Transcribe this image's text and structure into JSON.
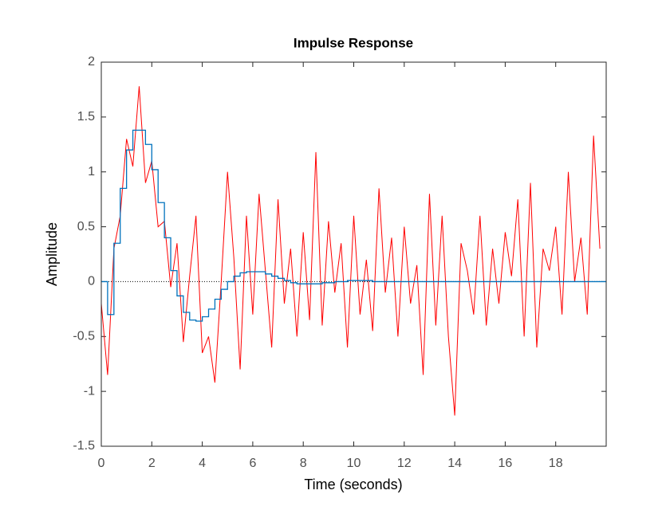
{
  "chart_data": {
    "type": "line",
    "title": "Impulse Response",
    "x_label": "Time (seconds)",
    "y_label": "Amplitude",
    "x": [
      0,
      0.25,
      0.5,
      0.75,
      1,
      1.25,
      1.5,
      1.75,
      2,
      2.25,
      2.5,
      2.75,
      3,
      3.25,
      3.5,
      3.75,
      4,
      4.25,
      4.5,
      4.75,
      5,
      5.25,
      5.5,
      5.75,
      6,
      6.25,
      6.5,
      6.75,
      7,
      7.25,
      7.5,
      7.75,
      8,
      8.25,
      8.5,
      8.75,
      9,
      9.25,
      9.5,
      9.75,
      10,
      10.25,
      10.5,
      10.75,
      11,
      11.25,
      11.5,
      11.75,
      12,
      12.25,
      12.5,
      12.75,
      13,
      13.25,
      13.5,
      13.75,
      14,
      14.25,
      14.5,
      14.75,
      15,
      15.25,
      15.5,
      15.75,
      16,
      16.25,
      16.5,
      16.75,
      17,
      17.25,
      17.5,
      17.75,
      18,
      18.25,
      18.5,
      18.75,
      19,
      19.25,
      19.5,
      19.75
    ],
    "series": [
      {
        "color": "#ff0000",
        "stairs": false,
        "values": [
          -0.2,
          -0.85,
          0.3,
          0.6,
          1.3,
          1.05,
          1.78,
          0.9,
          1.1,
          0.5,
          0.55,
          -0.05,
          0.35,
          -0.55,
          0.05,
          0.6,
          -0.65,
          -0.5,
          -0.92,
          0.0,
          1.0,
          0.22,
          -0.8,
          0.6,
          -0.3,
          0.8,
          0.1,
          -0.6,
          0.75,
          -0.2,
          0.3,
          -0.5,
          0.45,
          -0.35,
          1.18,
          -0.4,
          0.55,
          -0.1,
          0.35,
          -0.6,
          0.6,
          -0.3,
          0.2,
          -0.45,
          0.85,
          -0.1,
          0.4,
          -0.5,
          0.5,
          -0.2,
          0.15,
          -0.85,
          0.8,
          -0.4,
          0.6,
          -0.5,
          -1.22,
          0.35,
          0.1,
          -0.3,
          0.6,
          -0.4,
          0.3,
          -0.2,
          0.45,
          0.05,
          0.75,
          -0.5,
          0.9,
          -0.6,
          0.3,
          0.1,
          0.5,
          -0.3,
          1.0,
          0.0,
          0.4,
          -0.3,
          1.33,
          0.3
        ]
      },
      {
        "color": "#0072bd",
        "stairs": true,
        "values": [
          0,
          -0.3,
          0.35,
          0.85,
          1.2,
          1.38,
          1.38,
          1.25,
          1.02,
          0.72,
          0.4,
          0.1,
          -0.13,
          -0.28,
          -0.35,
          -0.36,
          -0.32,
          -0.25,
          -0.16,
          -0.07,
          0.0,
          0.05,
          0.08,
          0.09,
          0.09,
          0.09,
          0.07,
          0.05,
          0.03,
          0.01,
          -0.01,
          -0.02,
          -0.02,
          -0.02,
          -0.02,
          -0.01,
          -0.01,
          0,
          0,
          0.01,
          0.01,
          0.01,
          0.01,
          0,
          0,
          0,
          0,
          0,
          0,
          0,
          0,
          0,
          0,
          0,
          0,
          0,
          0,
          0,
          0,
          0,
          0,
          0,
          0,
          0,
          0,
          0,
          0,
          0,
          0,
          0,
          0,
          0,
          0,
          0,
          0,
          0,
          0,
          0,
          0,
          0
        ]
      }
    ],
    "xlim": [
      0,
      20
    ],
    "xticks": [
      0,
      2,
      4,
      6,
      8,
      10,
      12,
      14,
      16,
      18
    ],
    "ylim": [
      -1.5,
      2
    ],
    "yticks": [
      -1.5,
      -1,
      -0.5,
      0,
      0.5,
      1,
      1.5,
      2
    ],
    "zero_line": true
  }
}
